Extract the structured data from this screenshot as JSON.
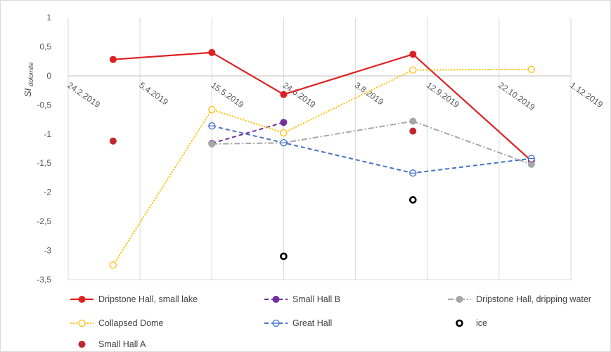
{
  "chart_data": {
    "type": "line",
    "ylabel": {
      "main": "SI",
      "subscript": "dolomite"
    },
    "xlabel": "",
    "ylim": [
      -3.5,
      1
    ],
    "yticks": [
      1,
      0.5,
      0,
      -0.5,
      -1,
      -1.5,
      -2,
      -2.5,
      -3,
      -3.5
    ],
    "ytick_labels": [
      "1",
      "0,5",
      "0",
      "-0,5",
      "-1",
      "-1,5",
      "-2",
      "-2,5",
      "-3",
      "-3,5"
    ],
    "xlim": [
      "2019-02-24",
      "2019-12-01"
    ],
    "xticks": [
      "2019-02-24",
      "2019-04-05",
      "2019-05-15",
      "2019-06-24",
      "2019-08-03",
      "2019-09-12",
      "2019-10-22",
      "2019-12-01"
    ],
    "xtick_labels": [
      "24.2.2019",
      "5.4.2019",
      "15.5.2019",
      "24.6.2019",
      "3.8.2019",
      "12.9.2019",
      "22.10.2019",
      "1.12.2019"
    ],
    "grid": "vertical",
    "legend_position": "bottom",
    "series": [
      {
        "name": "Dripstone Hall, small lake",
        "color": "#e02020",
        "line": "solid",
        "marker": "filled-circle",
        "points": [
          {
            "x": "2019-03-21",
            "y": 0.28
          },
          {
            "x": "2019-05-15",
            "y": 0.4
          },
          {
            "x": "2019-06-24",
            "y": -0.32
          },
          {
            "x": "2019-09-04",
            "y": 0.37
          },
          {
            "x": "2019-11-09",
            "y": -1.46
          }
        ]
      },
      {
        "name": "Small Hall B",
        "color": "#7030a0",
        "line": "dashed",
        "marker": "filled-circle",
        "points": [
          {
            "x": "2019-05-15",
            "y": -1.16
          },
          {
            "x": "2019-06-24",
            "y": -0.8
          }
        ]
      },
      {
        "name": "Dripstone Hall, dripping water",
        "color": "#a6a6a6",
        "line": "dash-dot",
        "marker": "filled-circle",
        "points": [
          {
            "x": "2019-05-15",
            "y": -1.17
          },
          {
            "x": "2019-06-24",
            "y": -1.15
          },
          {
            "x": "2019-09-04",
            "y": -0.78
          },
          {
            "x": "2019-11-09",
            "y": -1.52
          }
        ]
      },
      {
        "name": "Collapsed Dome",
        "color": "#ffc000",
        "line": "dotted",
        "marker": "open-circle",
        "points": [
          {
            "x": "2019-03-21",
            "y": -3.25
          },
          {
            "x": "2019-05-15",
            "y": -0.58
          },
          {
            "x": "2019-06-24",
            "y": -0.98
          },
          {
            "x": "2019-09-04",
            "y": 0.1
          },
          {
            "x": "2019-11-09",
            "y": 0.11
          }
        ]
      },
      {
        "name": "Great Hall",
        "color": "#4472c4",
        "line": "dashed",
        "marker": "barred-circle",
        "points": [
          {
            "x": "2019-05-15",
            "y": -0.86
          },
          {
            "x": "2019-06-24",
            "y": -1.15
          },
          {
            "x": "2019-09-04",
            "y": -1.67
          },
          {
            "x": "2019-11-09",
            "y": -1.42
          }
        ]
      },
      {
        "name": "ice",
        "color": "#000000",
        "line": "none",
        "marker": "ring",
        "points": [
          {
            "x": "2019-06-24",
            "y": -3.1
          },
          {
            "x": "2019-09-04",
            "y": -2.13
          }
        ]
      },
      {
        "name": "Small Hall A",
        "color": "#c0282d",
        "line": "none",
        "marker": "filled-circle",
        "points": [
          {
            "x": "2019-03-21",
            "y": -1.12
          },
          {
            "x": "2019-09-04",
            "y": -0.95
          }
        ]
      }
    ]
  }
}
